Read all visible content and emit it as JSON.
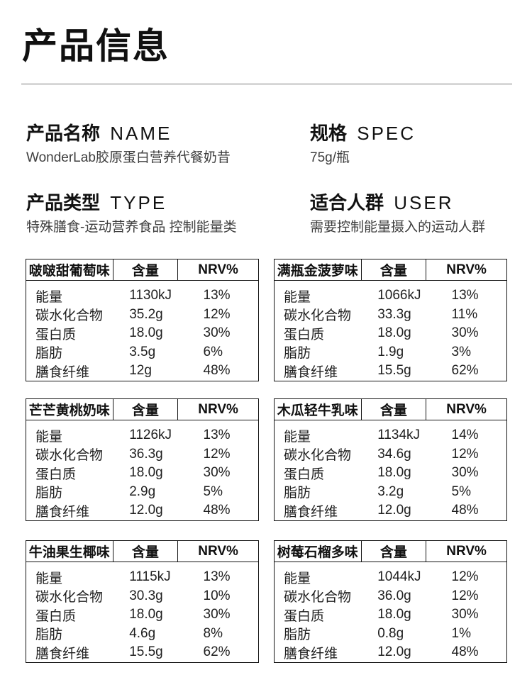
{
  "page_title": "产品信息",
  "meta": [
    {
      "heading_zh": "产品名称",
      "heading_en": "NAME",
      "value": "WonderLab胶原蛋白营养代餐奶昔"
    },
    {
      "heading_zh": "规格",
      "heading_en": "SPEC",
      "value": "75g/瓶"
    },
    {
      "heading_zh": "产品类型",
      "heading_en": "TYPE",
      "value": "特殊膳食-运动营养食品 控制能量类"
    },
    {
      "heading_zh": "适合人群",
      "heading_en": "USER",
      "value": "需要控制能量摄入的运动人群"
    }
  ],
  "labels": {
    "amount": "含量",
    "nrv": "NRV%"
  },
  "nutrition_tables": [
    {
      "flavor": "啵啵甜葡萄味",
      "rows": [
        [
          "能量",
          "1130kJ",
          "13%"
        ],
        [
          "碳水化合物",
          "35.2g",
          "12%"
        ],
        [
          "蛋白质",
          "18.0g",
          "30%"
        ],
        [
          "脂肪",
          "3.5g",
          "6%"
        ],
        [
          "膳食纤维",
          "12g",
          "48%"
        ]
      ]
    },
    {
      "flavor": "满瓶金菠萝味",
      "rows": [
        [
          "能量",
          "1066kJ",
          "13%"
        ],
        [
          "碳水化合物",
          "33.3g",
          "11%"
        ],
        [
          "蛋白质",
          "18.0g",
          "30%"
        ],
        [
          "脂肪",
          "1.9g",
          "3%"
        ],
        [
          "膳食纤维",
          "15.5g",
          "62%"
        ]
      ]
    },
    {
      "flavor": "芒芒黄桃奶味",
      "rows": [
        [
          "能量",
          "1126kJ",
          "13%"
        ],
        [
          "碳水化合物",
          "36.3g",
          "12%"
        ],
        [
          "蛋白质",
          "18.0g",
          "30%"
        ],
        [
          "脂肪",
          "2.9g",
          "5%"
        ],
        [
          "膳食纤维",
          "12.0g",
          "48%"
        ]
      ]
    },
    {
      "flavor": "木瓜轻牛乳味",
      "rows": [
        [
          "能量",
          "1134kJ",
          "14%"
        ],
        [
          "碳水化合物",
          "34.6g",
          "12%"
        ],
        [
          "蛋白质",
          "18.0g",
          "30%"
        ],
        [
          "脂肪",
          "3.2g",
          "5%"
        ],
        [
          "膳食纤维",
          "12.0g",
          "48%"
        ]
      ]
    },
    {
      "flavor": "牛油果生椰味",
      "rows": [
        [
          "能量",
          "1115kJ",
          "13%"
        ],
        [
          "碳水化合物",
          "30.3g",
          "10%"
        ],
        [
          "蛋白质",
          "18.0g",
          "30%"
        ],
        [
          "脂肪",
          "4.6g",
          "8%"
        ],
        [
          "膳食纤维",
          "15.5g",
          "62%"
        ]
      ]
    },
    {
      "flavor": "树莓石榴多味",
      "rows": [
        [
          "能量",
          "1044kJ",
          "12%"
        ],
        [
          "碳水化合物",
          "36.0g",
          "12%"
        ],
        [
          "蛋白质",
          "18.0g",
          "30%"
        ],
        [
          "脂肪",
          "0.8g",
          "1%"
        ],
        [
          "膳食纤维",
          "12.0g",
          "48%"
        ]
      ]
    }
  ],
  "colors": {
    "heading_text": "#111111",
    "body_text": "#1f1f1f",
    "secondary_text": "#3d3d3d",
    "table_border": "#141414",
    "divider_line": "#7a7a7a",
    "background": "#ffffff"
  }
}
